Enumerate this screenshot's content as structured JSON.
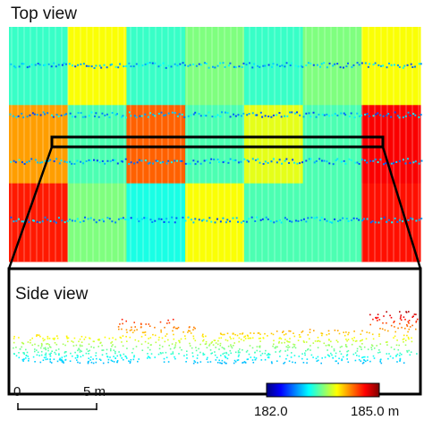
{
  "top_panel": {
    "title": "Top view"
  },
  "side_panel": {
    "title": "Side view"
  },
  "scale_bar": {
    "start_label": "0",
    "end_label": "5 m"
  },
  "colorbar": {
    "min_label": "182.0",
    "max_label": "185.0 m",
    "min_value": 182.0,
    "max_value": 185.0,
    "unit": "m",
    "colormap": [
      "#00007f",
      "#0000ff",
      "#007fff",
      "#00ffff",
      "#7fff7f",
      "#ffff00",
      "#ff7f00",
      "#ff0000",
      "#7f0000"
    ]
  },
  "plots": [
    {
      "row": 1,
      "levels": [
        0.43,
        0.62,
        0.43,
        0.5,
        0.43,
        0.5,
        0.62
      ]
    },
    {
      "row": 2,
      "levels": [
        0.72,
        0.45,
        0.78,
        0.45,
        0.6,
        0.45,
        0.88
      ]
    },
    {
      "row": 3,
      "levels": [
        0.85,
        0.5,
        0.4,
        0.62,
        0.45,
        0.45,
        0.86
      ]
    }
  ]
}
